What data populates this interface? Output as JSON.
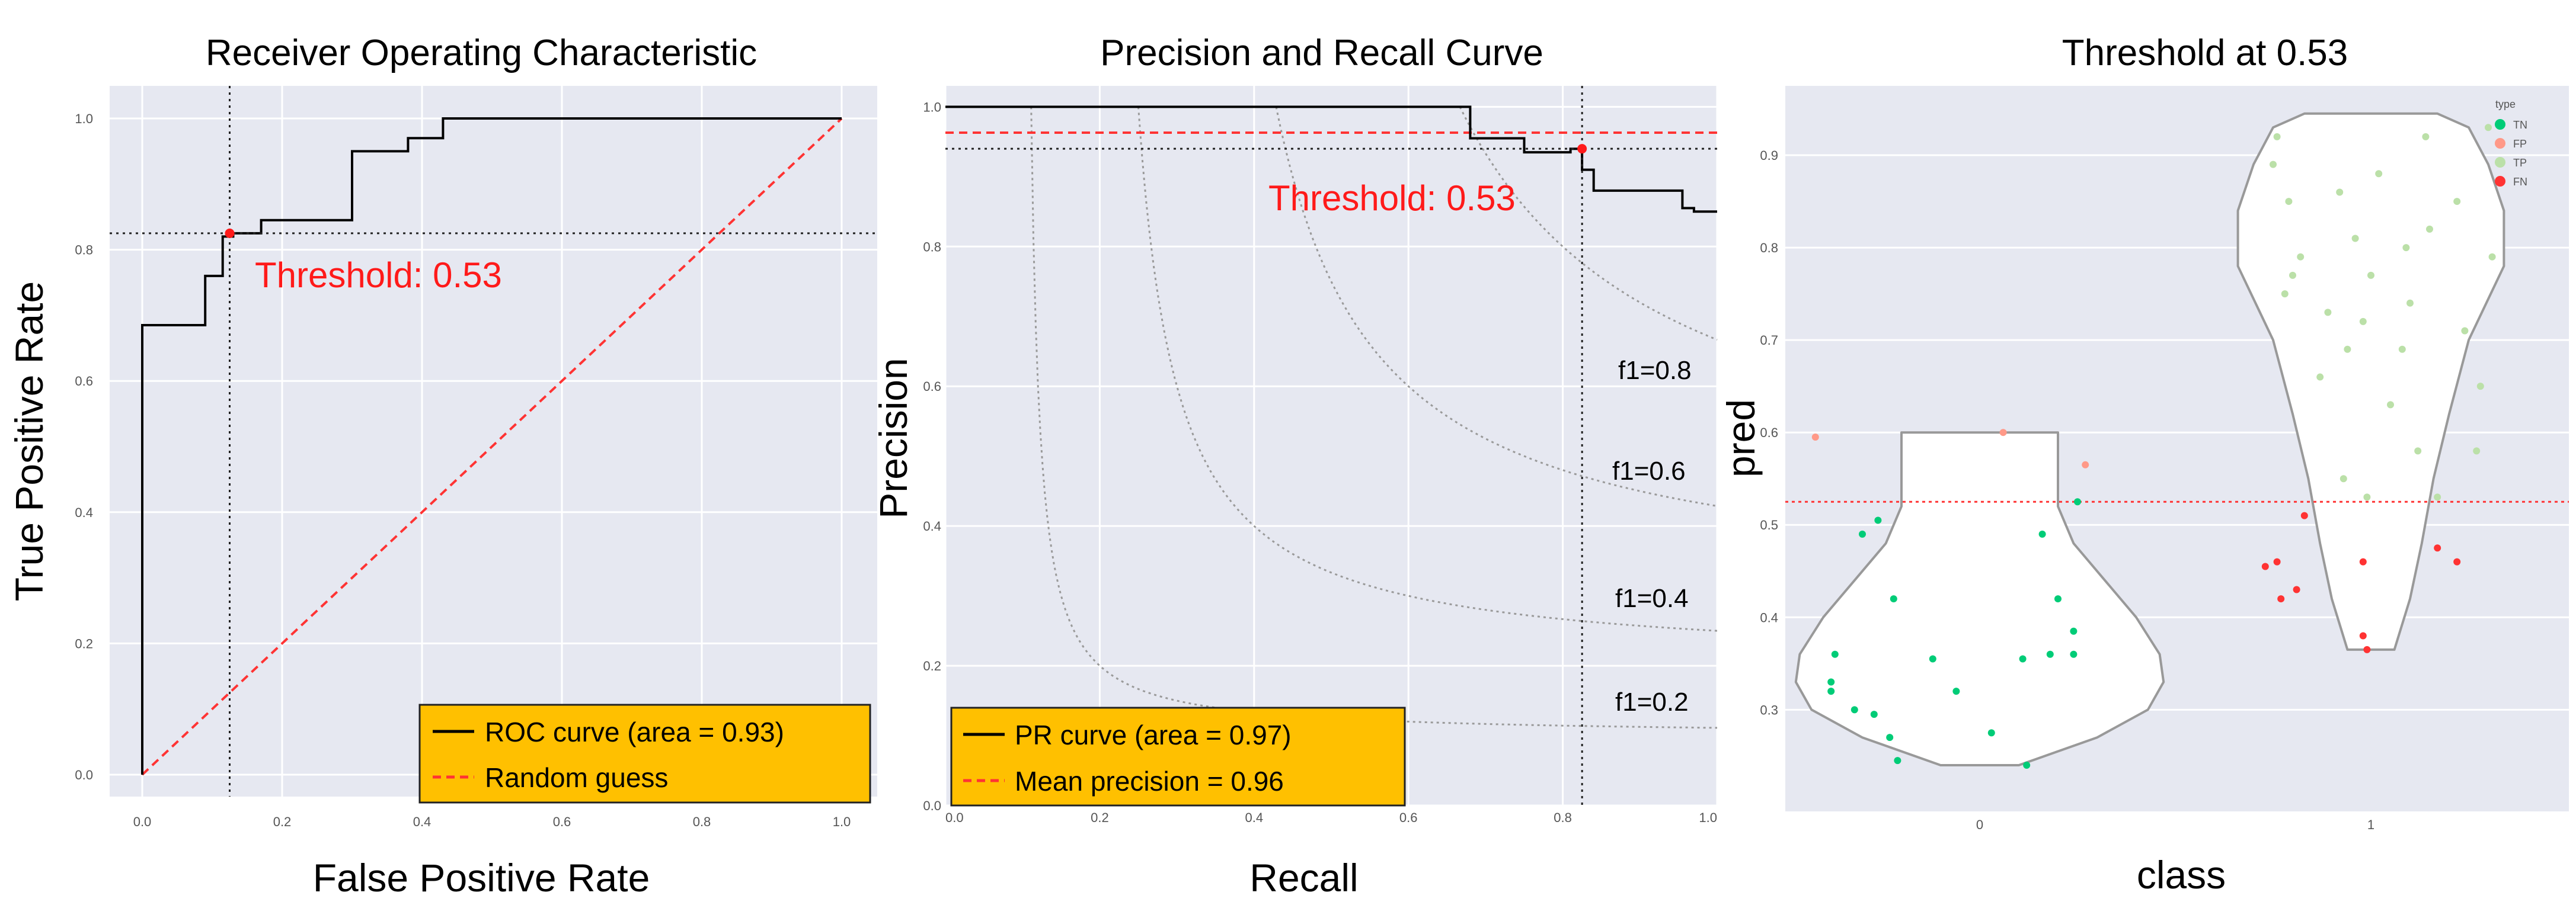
{
  "chart_data": [
    {
      "type": "line",
      "title": "Receiver Operating Characteristic",
      "xlabel": "False Positive Rate",
      "ylabel": "True Positive Rate",
      "xlim": [
        0,
        1
      ],
      "ylim": [
        0,
        1
      ],
      "xticks": [
        "0.0",
        "0.2",
        "0.4",
        "0.6",
        "0.8",
        "1.0"
      ],
      "yticks": [
        "0.0",
        "0.2",
        "0.4",
        "0.6",
        "0.8",
        "1.0"
      ],
      "grid": true,
      "legend_position": "bottom-right",
      "series": [
        {
          "name": "ROC curve (area = 0.93)",
          "color": "#000000",
          "style": "step",
          "x": [
            0,
            0,
            0.09,
            0.09,
            0.115,
            0.115,
            0.13,
            0.13,
            0.17,
            0.17,
            0.3,
            0.3,
            0.38,
            0.38,
            0.43,
            0.43,
            1.0
          ],
          "y": [
            0,
            0.685,
            0.685,
            0.76,
            0.76,
            0.82,
            0.82,
            0.825,
            0.825,
            0.845,
            0.845,
            0.95,
            0.95,
            0.97,
            0.97,
            1.0,
            1.0
          ]
        },
        {
          "name": "Random guess",
          "color": "#ff3333",
          "style": "dashed",
          "x": [
            0,
            1
          ],
          "y": [
            0,
            1
          ]
        }
      ],
      "threshold": {
        "label": "Threshold: 0.53",
        "x": 0.125,
        "y": 0.825
      }
    },
    {
      "type": "line",
      "title": "Precision and Recall Curve",
      "xlabel": "Recall",
      "ylabel": "Precision",
      "xlim": [
        0,
        1
      ],
      "ylim": [
        0,
        1.03
      ],
      "xticks": [
        "0.0",
        "0.2",
        "0.4",
        "0.6",
        "0.8",
        "1.0"
      ],
      "yticks": [
        "0.0",
        "0.2",
        "0.4",
        "0.6",
        "0.8",
        "1.0"
      ],
      "grid": true,
      "legend_position": "bottom-left",
      "series": [
        {
          "name": "PR curve (area = 0.97)",
          "color": "#000000",
          "style": "step",
          "x": [
            0,
            0.68,
            0.68,
            0.75,
            0.75,
            0.81,
            0.81,
            0.825,
            0.825,
            0.84,
            0.84,
            0.955,
            0.955,
            0.97,
            0.97,
            1.0
          ],
          "y": [
            1.0,
            1.0,
            0.955,
            0.955,
            0.935,
            0.935,
            0.94,
            0.94,
            0.91,
            0.91,
            0.88,
            0.88,
            0.855,
            0.855,
            0.85,
            0.85
          ]
        },
        {
          "name": "Mean precision = 0.96",
          "color": "#ff3333",
          "style": "dashed",
          "x": [
            0,
            1
          ],
          "y": [
            0.963,
            0.963
          ]
        }
      ],
      "f1_isolines": [
        {
          "label": "f1=0.2",
          "f": 0.2
        },
        {
          "label": "f1=0.4",
          "f": 0.4
        },
        {
          "label": "f1=0.6",
          "f": 0.6
        },
        {
          "label": "f1=0.8",
          "f": 0.8
        }
      ],
      "threshold": {
        "label": "Threshold: 0.53",
        "x": 0.825,
        "y": 0.94
      }
    },
    {
      "type": "scatter",
      "subtype": "violin",
      "title": "Threshold at 0.53",
      "xlabel": "class",
      "ylabel": "pred",
      "categories": [
        "0",
        "1"
      ],
      "ylim": [
        0.19,
        0.975
      ],
      "yticks": [
        "0.3",
        "0.4",
        "0.5",
        "0.6",
        "0.7",
        "0.8",
        "0.9"
      ],
      "threshold_y": 0.525,
      "legend_title": "type",
      "legend_position": "top-right",
      "legend": [
        {
          "label": "TN",
          "color": "#00cc77"
        },
        {
          "label": "FP",
          "color": "#ff9988"
        },
        {
          "label": "TP",
          "color": "#bbe0a8"
        },
        {
          "label": "FN",
          "color": "#ff3333"
        }
      ],
      "violins": [
        {
          "category": "0",
          "profile": [
            [
              0.24,
              0.1
            ],
            [
              0.27,
              0.3
            ],
            [
              0.3,
              0.43
            ],
            [
              0.33,
              0.47
            ],
            [
              0.36,
              0.46
            ],
            [
              0.4,
              0.4
            ],
            [
              0.44,
              0.32
            ],
            [
              0.48,
              0.24
            ],
            [
              0.52,
              0.2
            ],
            [
              0.56,
              0.2
            ],
            [
              0.6,
              0.2
            ]
          ]
        },
        {
          "category": "1",
          "profile": [
            [
              0.365,
              0.06
            ],
            [
              0.42,
              0.1
            ],
            [
              0.48,
              0.13
            ],
            [
              0.55,
              0.16
            ],
            [
              0.62,
              0.2
            ],
            [
              0.7,
              0.25
            ],
            [
              0.78,
              0.34
            ],
            [
              0.84,
              0.34
            ],
            [
              0.89,
              0.3
            ],
            [
              0.93,
              0.25
            ],
            [
              0.945,
              0.17
            ]
          ]
        }
      ],
      "points": [
        {
          "type": "TN",
          "x": -0.37,
          "y": 0.36
        },
        {
          "type": "TN",
          "x": -0.38,
          "y": 0.33
        },
        {
          "type": "TN",
          "x": -0.38,
          "y": 0.32
        },
        {
          "type": "TN",
          "x": -0.32,
          "y": 0.3
        },
        {
          "type": "TN",
          "x": -0.27,
          "y": 0.295
        },
        {
          "type": "TN",
          "x": -0.23,
          "y": 0.27
        },
        {
          "type": "TN",
          "x": -0.21,
          "y": 0.245
        },
        {
          "type": "TN",
          "x": -0.12,
          "y": 0.355
        },
        {
          "type": "TN",
          "x": -0.06,
          "y": 0.32
        },
        {
          "type": "TN",
          "x": 0.03,
          "y": 0.275
        },
        {
          "type": "TN",
          "x": 0.12,
          "y": 0.24
        },
        {
          "type": "TN",
          "x": 0.11,
          "y": 0.355
        },
        {
          "type": "TN",
          "x": 0.18,
          "y": 0.36
        },
        {
          "type": "TN",
          "x": 0.2,
          "y": 0.42
        },
        {
          "type": "TN",
          "x": 0.24,
          "y": 0.385
        },
        {
          "type": "TN",
          "x": 0.24,
          "y": 0.36
        },
        {
          "type": "TN",
          "x": 0.25,
          "y": 0.525
        },
        {
          "type": "TN",
          "x": 0.16,
          "y": 0.49
        },
        {
          "type": "TN",
          "x": -0.22,
          "y": 0.42
        },
        {
          "type": "TN",
          "x": -0.3,
          "y": 0.49
        },
        {
          "type": "TN",
          "x": -0.26,
          "y": 0.505
        },
        {
          "type": "FP",
          "x": -0.42,
          "y": 0.595
        },
        {
          "type": "FP",
          "x": 0.06,
          "y": 0.6
        },
        {
          "type": "FP",
          "x": 0.27,
          "y": 0.565
        },
        {
          "type": "TP",
          "x": 0.75,
          "y": 0.89
        },
        {
          "type": "TP",
          "x": 0.76,
          "y": 0.92
        },
        {
          "type": "TP",
          "x": 0.78,
          "y": 0.75
        },
        {
          "type": "TP",
          "x": 0.79,
          "y": 0.85
        },
        {
          "type": "TP",
          "x": 0.8,
          "y": 0.77
        },
        {
          "type": "TP",
          "x": 0.82,
          "y": 0.79
        },
        {
          "type": "TP",
          "x": 0.87,
          "y": 0.66
        },
        {
          "type": "TP",
          "x": 0.89,
          "y": 0.73
        },
        {
          "type": "TP",
          "x": 0.92,
          "y": 0.86
        },
        {
          "type": "TP",
          "x": 0.94,
          "y": 0.69
        },
        {
          "type": "TP",
          "x": 0.96,
          "y": 0.81
        },
        {
          "type": "TP",
          "x": 0.98,
          "y": 0.72
        },
        {
          "type": "TP",
          "x": 1.0,
          "y": 0.77
        },
        {
          "type": "TP",
          "x": 1.02,
          "y": 0.88
        },
        {
          "type": "TP",
          "x": 1.05,
          "y": 0.63
        },
        {
          "type": "TP",
          "x": 1.08,
          "y": 0.69
        },
        {
          "type": "TP",
          "x": 1.09,
          "y": 0.8
        },
        {
          "type": "TP",
          "x": 1.1,
          "y": 0.74
        },
        {
          "type": "TP",
          "x": 1.12,
          "y": 0.58
        },
        {
          "type": "TP",
          "x": 1.14,
          "y": 0.92
        },
        {
          "type": "TP",
          "x": 1.15,
          "y": 0.82
        },
        {
          "type": "TP",
          "x": 1.17,
          "y": 0.53
        },
        {
          "type": "TP",
          "x": 1.22,
          "y": 0.85
        },
        {
          "type": "TP",
          "x": 1.24,
          "y": 0.71
        },
        {
          "type": "TP",
          "x": 1.27,
          "y": 0.58
        },
        {
          "type": "TP",
          "x": 1.28,
          "y": 0.65
        },
        {
          "type": "TP",
          "x": 1.31,
          "y": 0.79
        },
        {
          "type": "TP",
          "x": 1.3,
          "y": 0.93
        },
        {
          "type": "TP",
          "x": 0.99,
          "y": 0.53
        },
        {
          "type": "TP",
          "x": 0.93,
          "y": 0.55
        },
        {
          "type": "FN",
          "x": 0.73,
          "y": 0.455
        },
        {
          "type": "FN",
          "x": 0.76,
          "y": 0.46
        },
        {
          "type": "FN",
          "x": 0.77,
          "y": 0.42
        },
        {
          "type": "FN",
          "x": 0.81,
          "y": 0.43
        },
        {
          "type": "FN",
          "x": 0.83,
          "y": 0.51
        },
        {
          "type": "FN",
          "x": 0.98,
          "y": 0.46
        },
        {
          "type": "FN",
          "x": 0.98,
          "y": 0.38
        },
        {
          "type": "FN",
          "x": 0.99,
          "y": 0.365
        },
        {
          "type": "FN",
          "x": 1.17,
          "y": 0.475
        },
        {
          "type": "FN",
          "x": 1.22,
          "y": 0.46
        }
      ]
    }
  ]
}
